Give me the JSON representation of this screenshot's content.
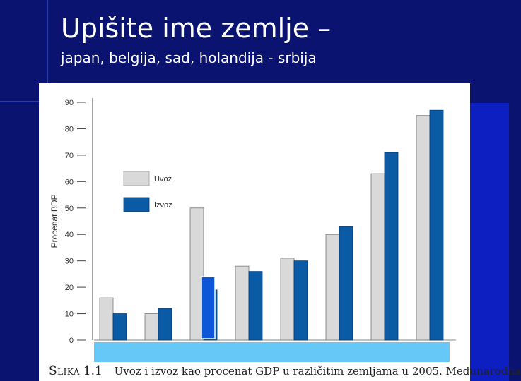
{
  "slide": {
    "title": "Upišite ime zemlje –",
    "subtitle": "japan, belgija, sad, holandija - srbija"
  },
  "colors": {
    "background": "#0a1470",
    "accent": "#0d1fc0",
    "uvoz": "#d9d9d9",
    "izvoz": "#0a5aa6",
    "highlight_bar": "#0d56d8",
    "answer_band": "#66c8f7"
  },
  "caption": {
    "label": "Slika",
    "number": "1.1",
    "text": "Uvoz i izvoz kao procenat GDP u različitim zemljama u 2005. Međunarodna"
  },
  "chart_data": {
    "type": "bar",
    "ylabel": "Procenat BDP",
    "ylim": [
      0,
      90
    ],
    "yticks": [
      0,
      10,
      20,
      30,
      40,
      50,
      60,
      70,
      80,
      90
    ],
    "grid": false,
    "legend_position": "upper-left",
    "categories": [
      "",
      "",
      "",
      "",
      "",
      "",
      "",
      ""
    ],
    "series": [
      {
        "name": "Uvoz",
        "values": [
          16,
          10,
          50,
          28,
          31,
          40,
          63,
          85
        ]
      },
      {
        "name": "Izvoz",
        "values": [
          10,
          12,
          19,
          26,
          30,
          43,
          71,
          87
        ]
      }
    ],
    "annotations": [
      {
        "type": "overlay-bar",
        "category_index": 2,
        "series": "Izvoz",
        "value": 24
      }
    ]
  }
}
